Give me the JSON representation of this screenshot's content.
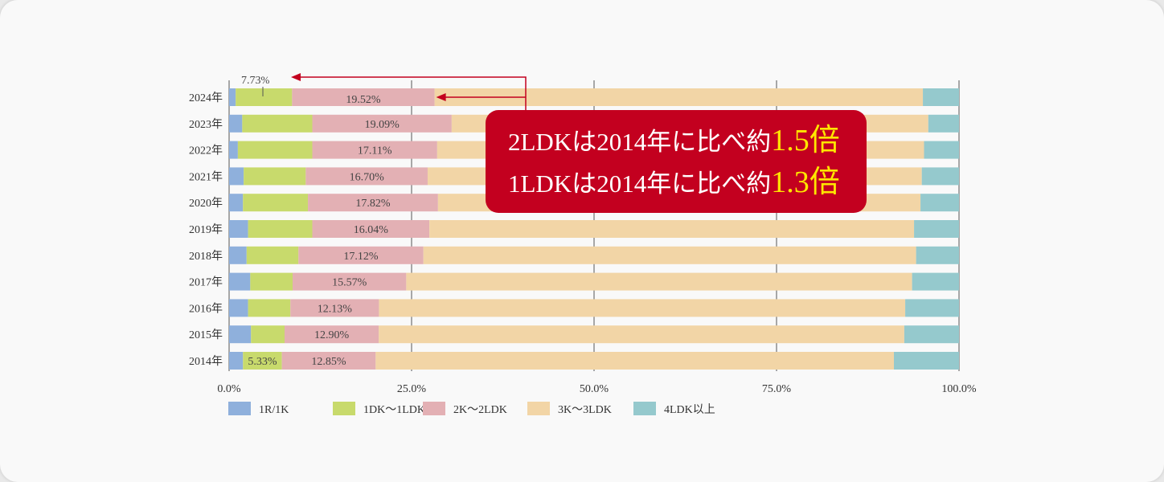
{
  "chart_data": {
    "type": "bar",
    "orientation": "horizontal",
    "stacked": true,
    "categories": [
      "2024年",
      "2023年",
      "2022年",
      "2021年",
      "2020年",
      "2019年",
      "2018年",
      "2017年",
      "2016年",
      "2015年",
      "2014年"
    ],
    "series": [
      {
        "name": "1R/1K",
        "color": "#8fb0dc",
        "values": [
          0.9,
          1.8,
          1.2,
          2.0,
          1.9,
          2.6,
          2.4,
          2.9,
          2.6,
          3.0,
          1.9
        ]
      },
      {
        "name": "1DK〜1LDK",
        "color": "#c8da6c",
        "values": [
          7.73,
          9.6,
          10.2,
          8.5,
          8.9,
          8.8,
          7.1,
          5.8,
          5.8,
          4.6,
          5.33
        ]
      },
      {
        "name": "2K〜2LDK",
        "color": "#e3b0b4",
        "values": [
          19.52,
          19.09,
          17.11,
          16.7,
          17.82,
          16.04,
          17.12,
          15.57,
          12.13,
          12.9,
          12.85
        ]
      },
      {
        "name": "3K〜3LDK",
        "color": "#f2d5a6",
        "values": [
          66.9,
          65.3,
          66.7,
          67.7,
          66.1,
          66.4,
          67.5,
          69.3,
          72.1,
          72.0,
          71.0
        ]
      },
      {
        "name": "4LDK以上",
        "color": "#95c9cd",
        "values": [
          4.95,
          4.21,
          4.79,
          5.1,
          5.28,
          6.16,
          5.88,
          6.43,
          7.37,
          7.5,
          8.92
        ]
      }
    ],
    "labels": {
      "2K〜2LDK": [
        "19.52%",
        "19.09%",
        "17.11%",
        "16.70%",
        "17.82%",
        "16.04%",
        "17.12%",
        "15.57%",
        "12.13%",
        "12.90%",
        "12.85%"
      ],
      "1DK〜1LDK_2014": "5.33%",
      "1DK〜1LDK_2024": "7.73",
      "1DK〜1LDK_2024_unit": "%"
    },
    "xticks": [
      "0.0%",
      "25.0%",
      "50.0%",
      "75.0%",
      "100.0%"
    ],
    "xlim": [
      0,
      100
    ],
    "grid": true,
    "legend_position": "bottom"
  },
  "callout": {
    "line1_text": "2LDKは2014年に比べ約",
    "line1_value": "1.5倍",
    "line2_text": "1LDKは2014年に比べ約",
    "line2_value": "1.3倍"
  },
  "colors": {
    "accent_red": "#c3001f",
    "highlight_yellow": "#ffe600"
  }
}
